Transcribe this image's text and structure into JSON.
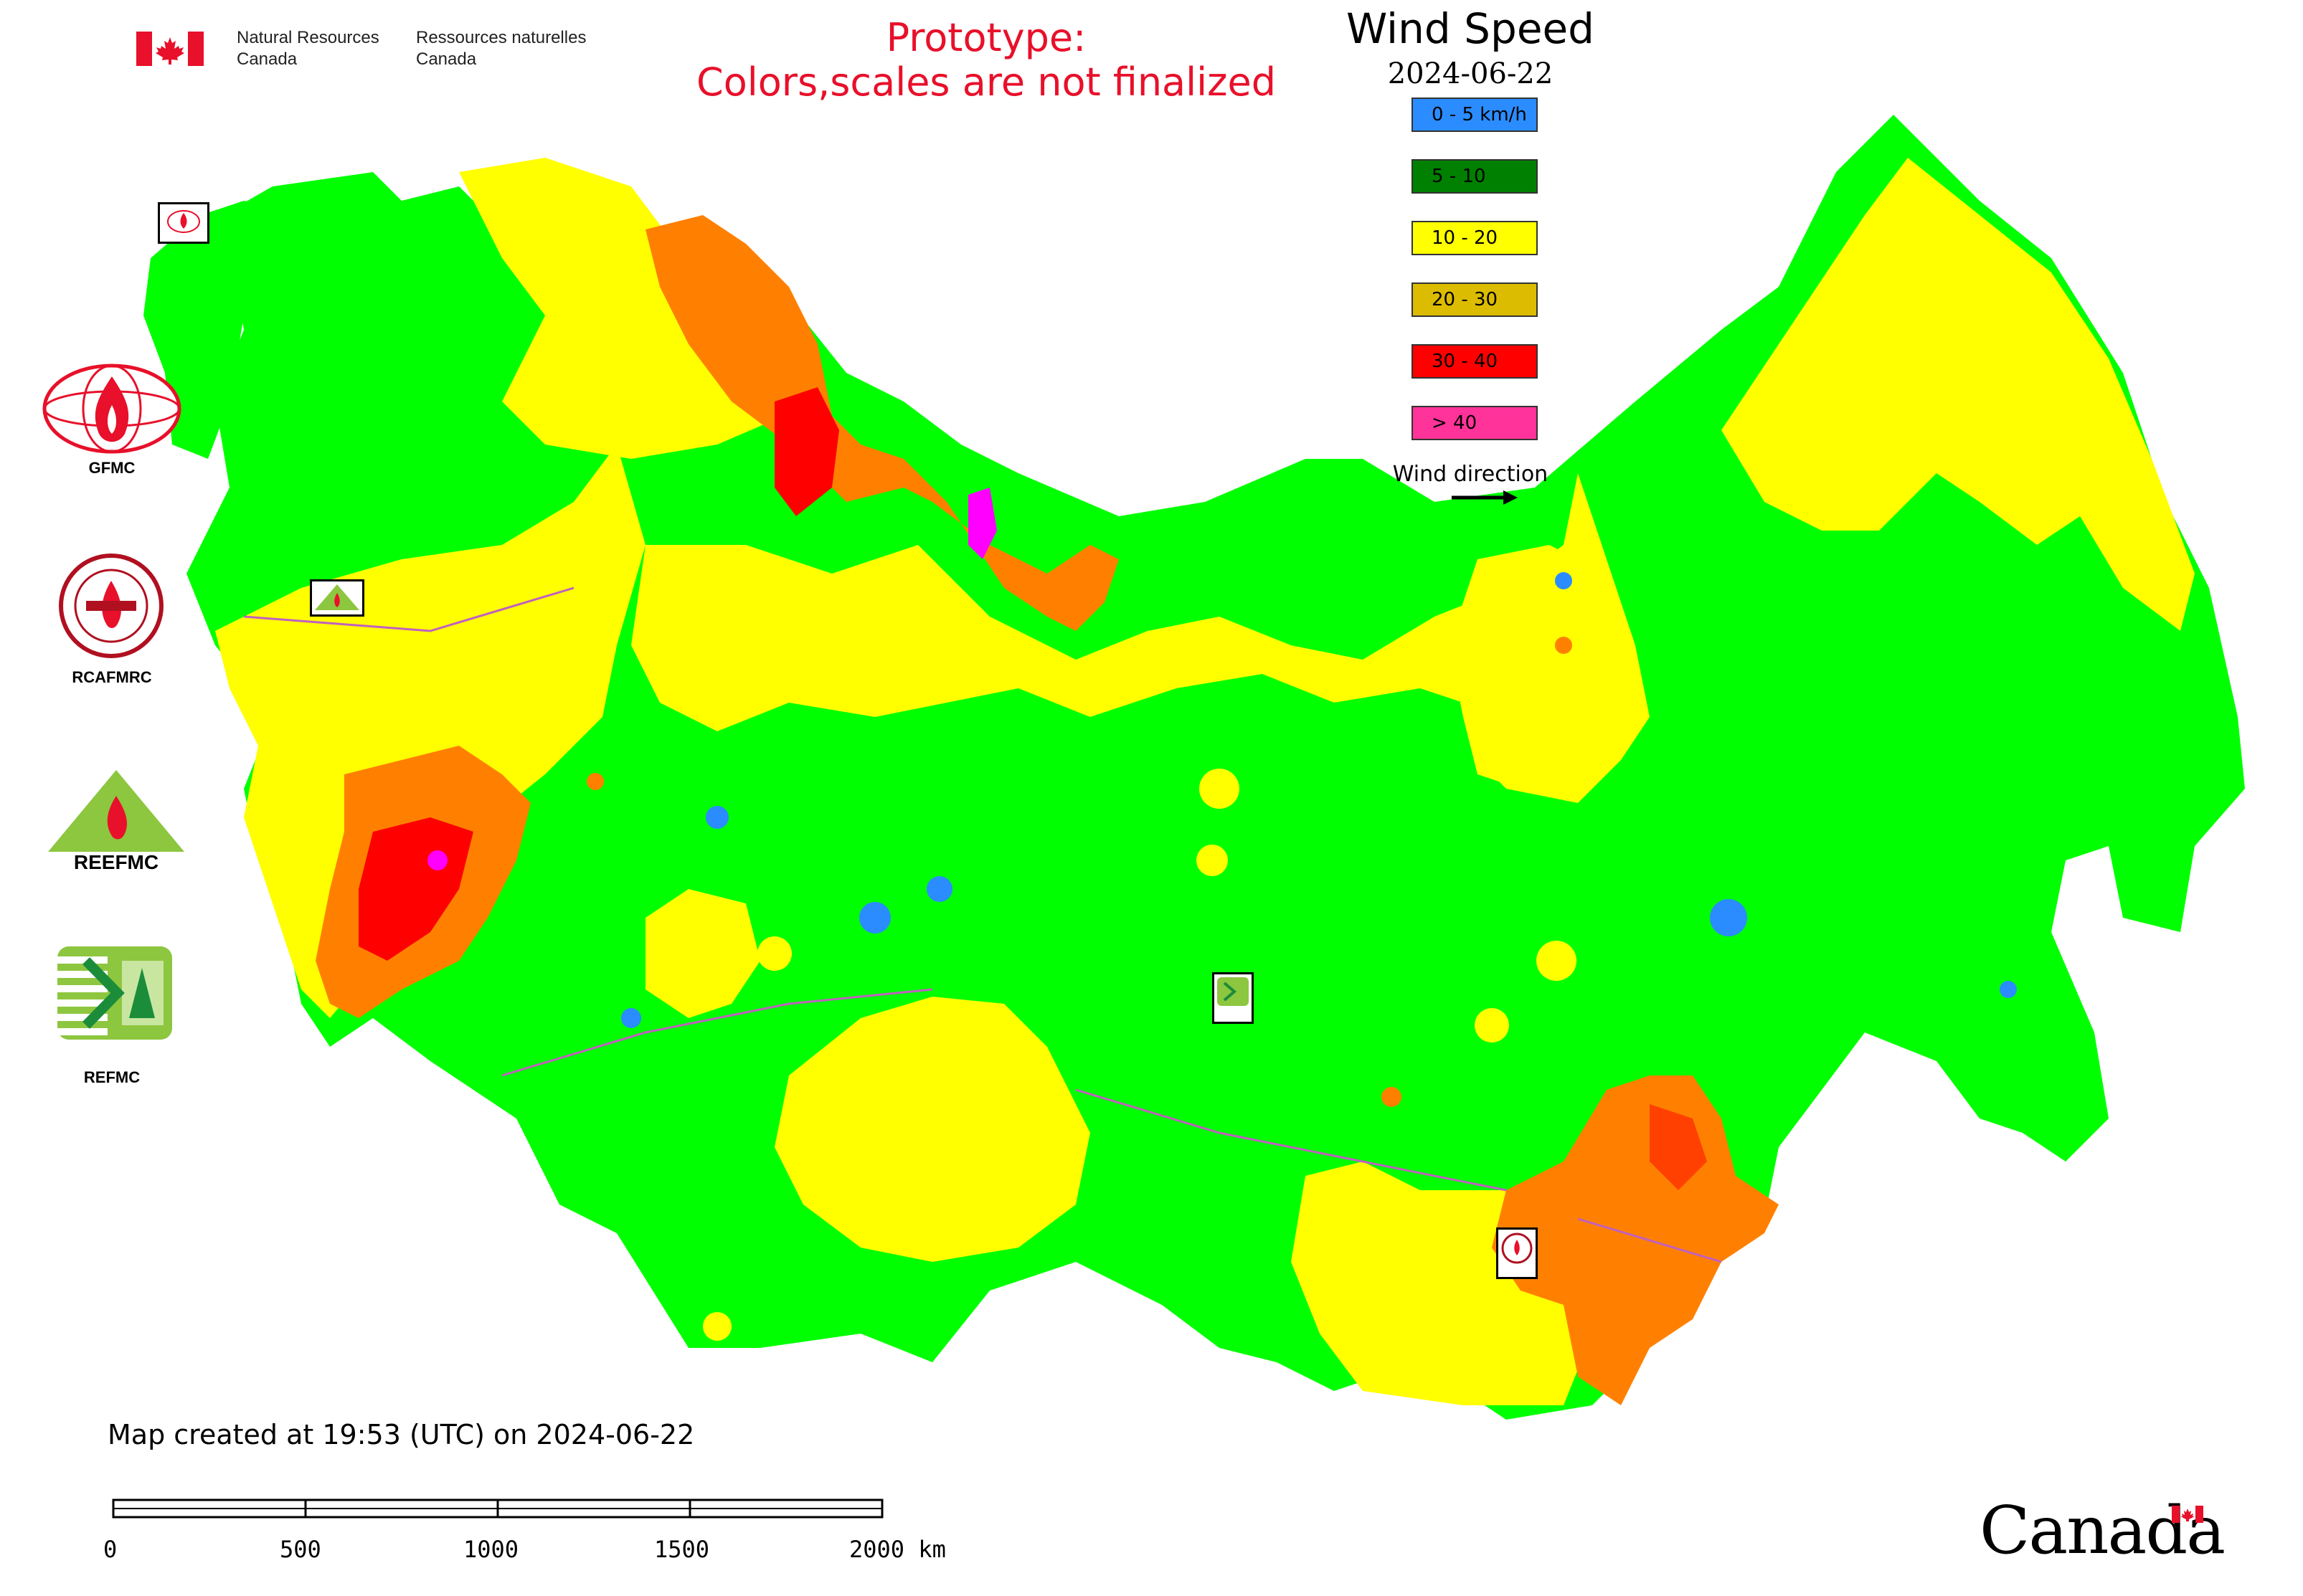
{
  "header": {
    "gov_en_line1": "Natural Resources",
    "gov_en_line2": "Canada",
    "gov_fr_line1": "Ressources naturelles",
    "gov_fr_line2": "Canada",
    "flag_color": "#e8102a"
  },
  "prototype_notice": {
    "line1": "Prototype:",
    "line2": "Colors,scales are not finalized",
    "color": "#e8102a"
  },
  "legend": {
    "title": "Wind Speed",
    "date": "2024-06-22",
    "classes": [
      {
        "label": "0 - 5 km/h",
        "color": "#2b8cff"
      },
      {
        "label": "5 - 10",
        "color": "#008000"
      },
      {
        "label": "10 - 20",
        "color": "#ffff00"
      },
      {
        "label": "20 - 30",
        "color": "#dcbc00"
      },
      {
        "label": "30 - 40",
        "color": "#ff0000"
      },
      {
        "label": "> 40",
        "color": "#ff3399"
      }
    ],
    "wind_direction_label": "Wind direction"
  },
  "map_colors": {
    "green": "#00ff00",
    "yellow": "#ffff00",
    "orange": "#ff8000",
    "red": "#ff0000",
    "blue": "#2b8cff",
    "magenta": "#ff00ff",
    "border": "#c060c0"
  },
  "side_logos": [
    {
      "label": "GFMC",
      "icon": "fire-flame-globe-icon"
    },
    {
      "label": "RCAFMRC",
      "icon": "fire-center-seal-icon"
    },
    {
      "label": "",
      "icon": "reefmc-triangle-icon",
      "wordmark": "REEFMC"
    },
    {
      "label": "REFMC",
      "icon": "refmc-sigma-icon"
    }
  ],
  "footer": {
    "created_text": "Map created at 19:53 (UTC) on 2024-06-22",
    "scale_ticks": [
      "0",
      "500",
      "1000",
      "1500",
      "2000 km"
    ],
    "canada_wordmark": "Canada"
  }
}
